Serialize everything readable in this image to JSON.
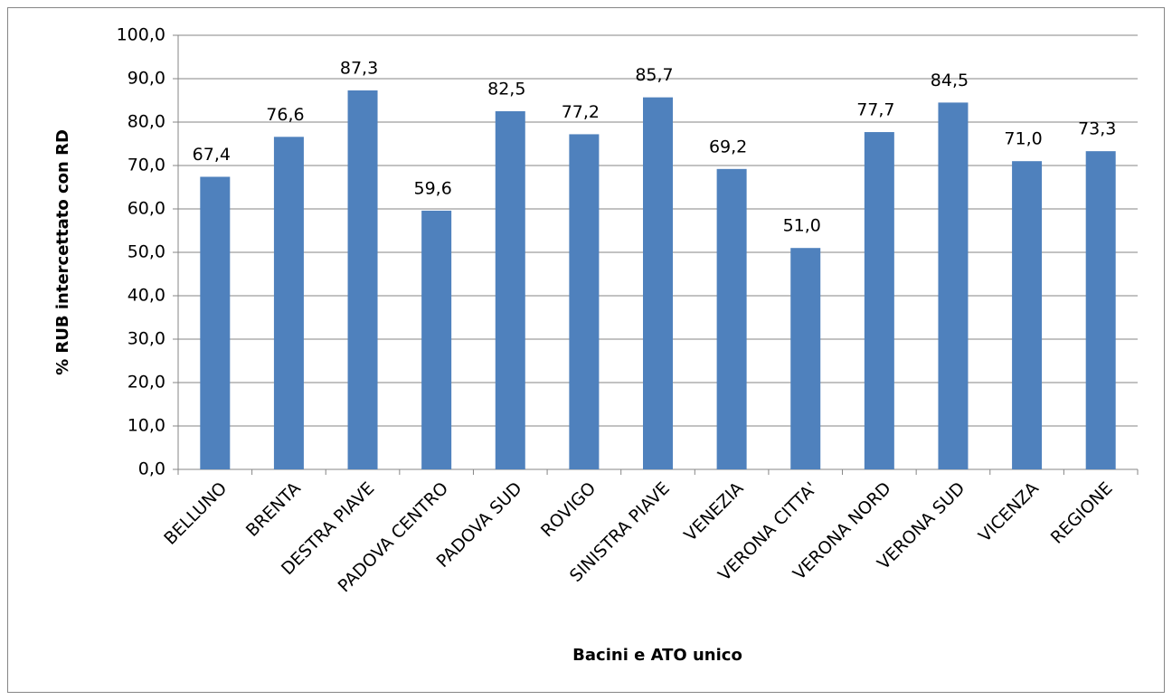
{
  "chart_data": {
    "type": "bar",
    "x_label": "Bacini e ATO unico",
    "y_label": "% RUB intercettato con RD",
    "categories": [
      "BELLUNO",
      "BRENTA",
      "DESTRA PIAVE",
      "PADOVA CENTRO",
      "PADOVA SUD",
      "ROVIGO",
      "SINISTRA PIAVE",
      "VENEZIA",
      "VERONA CITTA'",
      "VERONA NORD",
      "VERONA SUD",
      "VICENZA",
      "REGIONE"
    ],
    "values": [
      67.4,
      76.6,
      87.3,
      59.6,
      82.5,
      77.2,
      85.7,
      69.2,
      51.0,
      77.7,
      84.5,
      71.0,
      73.3
    ],
    "value_labels": [
      "67,4",
      "76,6",
      "87,3",
      "59,6",
      "82,5",
      "77,2",
      "85,7",
      "69,2",
      "51,0",
      "77,7",
      "84,5",
      "71,0",
      "73,3"
    ],
    "color": "#4f81bd",
    "ylim": [
      0,
      100
    ],
    "yticks": [
      {
        "value": 0,
        "label": "0,0"
      },
      {
        "value": 10,
        "label": "10,0"
      },
      {
        "value": 20,
        "label": "20,0"
      },
      {
        "value": 30,
        "label": "30,0"
      },
      {
        "value": 40,
        "label": "40,0"
      },
      {
        "value": 50,
        "label": "50,0"
      },
      {
        "value": 60,
        "label": "60,0"
      },
      {
        "value": 70,
        "label": "70,0"
      },
      {
        "value": 80,
        "label": "80,0"
      },
      {
        "value": 90,
        "label": "90,0"
      },
      {
        "value": 100,
        "label": "100,0"
      }
    ],
    "grid": true
  }
}
